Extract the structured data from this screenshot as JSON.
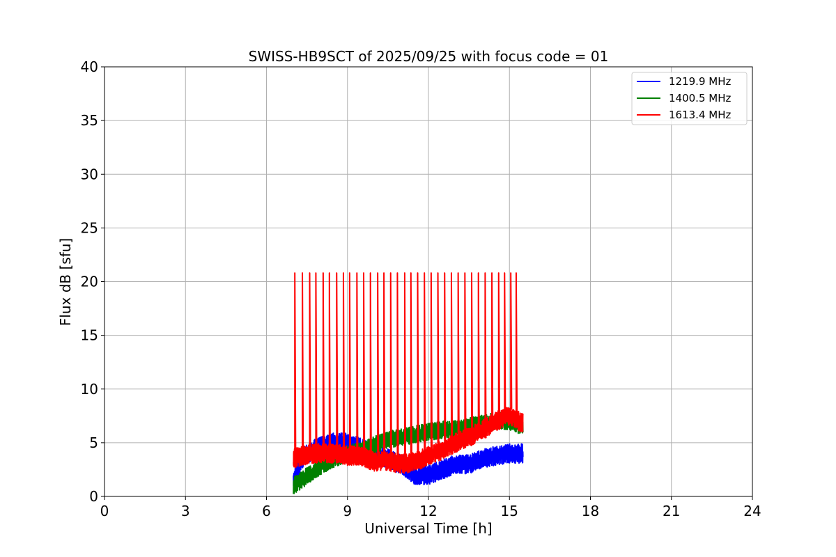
{
  "chart_data": {
    "type": "line",
    "title": "SWISS-HB9SCT of 2025/09/25 with focus code = 01",
    "xlabel": "Universal Time [h]",
    "ylabel": "Flux dB [sfu]",
    "xlim": [
      0,
      24
    ],
    "ylim": [
      0,
      40
    ],
    "xticks": [
      0,
      3,
      6,
      9,
      12,
      15,
      18,
      21,
      24
    ],
    "yticks": [
      0,
      5,
      10,
      15,
      20,
      25,
      30,
      35,
      40
    ],
    "xtick_labels": [
      "0",
      "3",
      "6",
      "9",
      "12",
      "15",
      "18",
      "21",
      "24"
    ],
    "ytick_labels": [
      "0",
      "5",
      "10",
      "15",
      "20",
      "25",
      "30",
      "35",
      "40"
    ],
    "grid": true,
    "legend_position": "top-right",
    "data_start_hour": 7.0,
    "data_end_hour": 15.5,
    "series": [
      {
        "name": "1219.9 MHz",
        "color": "#0000ff",
        "baseline_hours": [
          7.0,
          7.3,
          7.8,
          8.5,
          9.0,
          9.5,
          10.0,
          10.5,
          11.0,
          11.5,
          12.0,
          12.5,
          13.0,
          13.5,
          14.0,
          14.5,
          15.0,
          15.5
        ],
        "baseline_values": [
          1.5,
          3.5,
          4.5,
          5.0,
          5.0,
          4.5,
          4.0,
          3.5,
          3.0,
          2.0,
          2.0,
          2.5,
          3.0,
          3.0,
          3.5,
          3.8,
          4.0,
          4.0
        ],
        "noise_amplitude": 0.9
      },
      {
        "name": "1400.5 MHz",
        "color": "#008000",
        "baseline_hours": [
          7.0,
          7.3,
          7.8,
          8.5,
          9.0,
          9.5,
          10.0,
          10.5,
          11.0,
          11.5,
          12.0,
          12.5,
          13.0,
          13.5,
          14.0,
          14.5,
          15.0,
          15.5
        ],
        "baseline_values": [
          1.0,
          1.5,
          2.5,
          3.5,
          4.0,
          4.2,
          4.8,
          5.3,
          5.5,
          5.8,
          6.0,
          6.2,
          6.3,
          6.5,
          6.8,
          7.0,
          7.0,
          6.5
        ],
        "noise_amplitude": 0.8
      },
      {
        "name": "1613.4 MHz",
        "color": "#ff0000",
        "baseline_hours": [
          7.0,
          7.3,
          7.8,
          8.5,
          9.0,
          9.5,
          10.0,
          10.5,
          11.0,
          11.5,
          12.0,
          12.5,
          13.0,
          13.5,
          14.0,
          14.5,
          15.0,
          15.5
        ],
        "baseline_values": [
          3.5,
          3.8,
          4.0,
          4.0,
          3.8,
          3.8,
          3.2,
          3.3,
          3.0,
          3.2,
          3.8,
          4.3,
          5.0,
          5.5,
          6.2,
          7.0,
          7.5,
          6.8
        ],
        "noise_amplitude": 0.9,
        "spike_peak": 20.8,
        "spike_hours": [
          7.05,
          7.33,
          7.6,
          7.83,
          8.1,
          8.33,
          8.6,
          8.85,
          9.08,
          9.35,
          9.6,
          9.85,
          10.12,
          10.35,
          10.6,
          10.85,
          11.12,
          11.35,
          11.6,
          11.85,
          12.1,
          12.35,
          12.6,
          12.85,
          13.1,
          13.35,
          13.6,
          13.85,
          14.1,
          14.35,
          14.6,
          14.82,
          15.05,
          15.25
        ]
      }
    ]
  }
}
